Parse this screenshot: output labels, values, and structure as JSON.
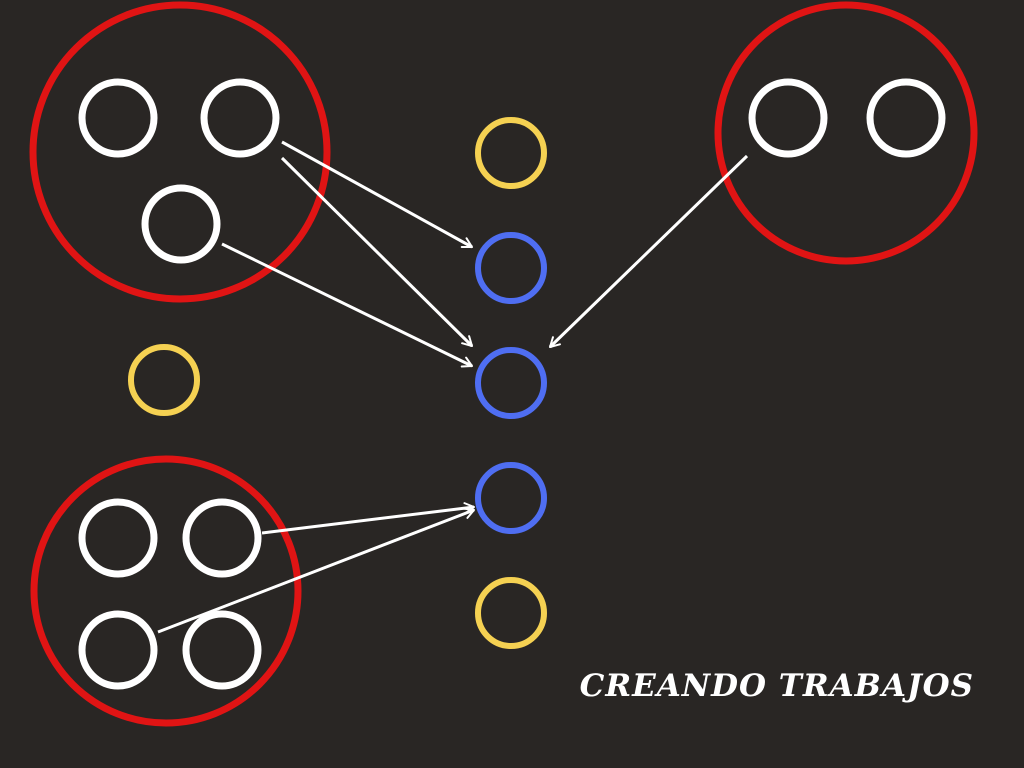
{
  "caption": "CREANDO TRABAJOS",
  "colors": {
    "background": "#292624",
    "group_outline": "#e01414",
    "worker": "#ffffff",
    "idle_job": "#f5d152",
    "active_job": "#4f6ef2",
    "arrow": "#ffffff"
  },
  "diagram": {
    "groups": [
      {
        "id": "group-top-left",
        "workers": [
          "w1",
          "w2",
          "w3"
        ]
      },
      {
        "id": "group-top-right",
        "workers": [
          "w4",
          "w5"
        ]
      },
      {
        "id": "group-bottom-left",
        "workers": [
          "w6",
          "w7",
          "w8",
          "w9"
        ]
      }
    ],
    "jobs": [
      {
        "id": "job-1",
        "state": "idle"
      },
      {
        "id": "job-2",
        "state": "active"
      },
      {
        "id": "job-3",
        "state": "active"
      },
      {
        "id": "job-4",
        "state": "active"
      },
      {
        "id": "job-5",
        "state": "idle"
      },
      {
        "id": "job-left",
        "state": "idle"
      }
    ],
    "edges": [
      {
        "from": "w2",
        "to": "job-2"
      },
      {
        "from": "w2",
        "to": "job-3"
      },
      {
        "from": "w3",
        "to": "job-3"
      },
      {
        "from": "w4",
        "to": "job-3"
      },
      {
        "from": "w7",
        "to": "job-4"
      },
      {
        "from": "w8",
        "to": "job-4"
      }
    ]
  }
}
